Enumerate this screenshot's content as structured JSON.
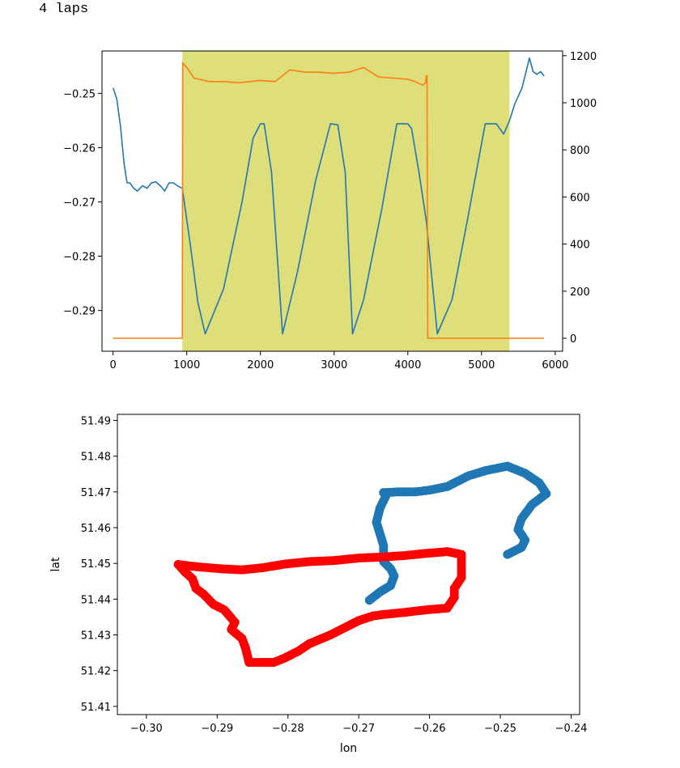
{
  "output_text": "4 laps",
  "chart_data": [
    {
      "type": "line",
      "title": "",
      "xlabel": "",
      "ylabel": "",
      "xlim": [
        -150,
        6100
      ],
      "ylim_left": [
        -0.2975,
        -0.2422
      ],
      "ylim_right": [
        -55,
        1220
      ],
      "xticks": [
        0,
        1000,
        2000,
        3000,
        4000,
        5000,
        6000
      ],
      "xtick_labels": [
        "0",
        "1000",
        "2000",
        "3000",
        "4000",
        "5000",
        "6000"
      ],
      "yticks_left": [
        -0.25,
        -0.26,
        -0.27,
        -0.28,
        -0.29
      ],
      "ytick_labels_left": [
        "−0.25",
        "−0.26",
        "−0.27",
        "−0.28",
        "−0.29"
      ],
      "yticks_right": [
        0,
        200,
        400,
        600,
        800,
        1000,
        1200
      ],
      "ytick_labels_right": [
        "0",
        "200",
        "400",
        "600",
        "800",
        "1000",
        "1200"
      ],
      "shaded_region": {
        "x": [
          940,
          5380
        ],
        "color": "#dede7a"
      },
      "series": [
        {
          "axis": "left",
          "color": "#1f77b4",
          "x": [
            0,
            50,
            100,
            150,
            190,
            230,
            280,
            330,
            400,
            460,
            520,
            580,
            640,
            700,
            760,
            820,
            870,
            940,
            1050,
            1150,
            1250,
            1500,
            1750,
            1900,
            2000,
            2050,
            2150,
            2300,
            2500,
            2750,
            2950,
            3050,
            3150,
            3250,
            3400,
            3650,
            3850,
            4000,
            4050,
            4150,
            4250,
            4400,
            4600,
            4800,
            5050,
            5200,
            5300,
            5380,
            5450,
            5550,
            5650,
            5700,
            5750,
            5800,
            5850
          ],
          "y": [
            -0.249,
            -0.251,
            -0.256,
            -0.263,
            -0.2665,
            -0.2665,
            -0.2675,
            -0.268,
            -0.267,
            -0.2675,
            -0.2665,
            -0.2663,
            -0.267,
            -0.268,
            -0.2665,
            -0.2665,
            -0.267,
            -0.2675,
            -0.278,
            -0.2885,
            -0.2943,
            -0.286,
            -0.27,
            -0.2583,
            -0.2556,
            -0.2556,
            -0.2645,
            -0.2943,
            -0.283,
            -0.266,
            -0.2556,
            -0.2558,
            -0.2645,
            -0.2943,
            -0.288,
            -0.271,
            -0.2556,
            -0.2556,
            -0.2565,
            -0.2645,
            -0.2735,
            -0.2943,
            -0.288,
            -0.274,
            -0.2556,
            -0.2556,
            -0.2575,
            -0.255,
            -0.252,
            -0.249,
            -0.2435,
            -0.246,
            -0.2465,
            -0.246,
            -0.2468
          ]
        },
        {
          "axis": "right",
          "color": "#ff7f0e",
          "x": [
            0,
            930,
            940,
            945,
            1000,
            1100,
            1300,
            1500,
            1700,
            2000,
            2200,
            2400,
            2600,
            2800,
            3000,
            3200,
            3400,
            3600,
            3800,
            4000,
            4100,
            4200,
            4240,
            4250,
            4260,
            4270,
            5000,
            5850
          ],
          "y": [
            0,
            0,
            0,
            1170,
            1150,
            1105,
            1090,
            1090,
            1085,
            1095,
            1090,
            1140,
            1130,
            1130,
            1125,
            1130,
            1150,
            1110,
            1105,
            1100,
            1090,
            1075,
            1085,
            1115,
            1115,
            0,
            0,
            0
          ]
        }
      ]
    },
    {
      "type": "scatter",
      "title": "",
      "xlabel": "lon",
      "ylabel": "lat",
      "xlim": [
        -0.3041,
        -0.2388
      ],
      "ylim": [
        51.4077,
        51.4917
      ],
      "xticks": [
        -0.3,
        -0.29,
        -0.28,
        -0.27,
        -0.26,
        -0.25,
        -0.24
      ],
      "xtick_labels": [
        "−0.30",
        "−0.29",
        "−0.28",
        "−0.27",
        "−0.26",
        "−0.25",
        "−0.24"
      ],
      "yticks": [
        51.41,
        51.42,
        51.43,
        51.44,
        51.45,
        51.46,
        51.47,
        51.48,
        51.49
      ],
      "ytick_labels": [
        "51.41",
        "51.42",
        "51.43",
        "51.44",
        "51.45",
        "51.46",
        "51.47",
        "51.48",
        "51.49"
      ],
      "series": [
        {
          "color": "#1f77b4",
          "lon": [
            -0.2685,
            -0.267,
            -0.2655,
            -0.265,
            -0.2655,
            -0.2665,
            -0.2665,
            -0.2675,
            -0.267,
            -0.266,
            -0.2665,
            -0.2665,
            -0.2645,
            -0.262,
            -0.26,
            -0.2575,
            -0.2555,
            -0.2545,
            -0.252,
            -0.249,
            -0.2465,
            -0.2445,
            -0.2435,
            -0.2455,
            -0.247,
            -0.2475,
            -0.2465,
            -0.247,
            -0.249
          ],
          "lat": [
            51.4397,
            51.442,
            51.4438,
            51.4465,
            51.4485,
            51.4505,
            51.455,
            51.4615,
            51.4655,
            51.4695,
            51.4698,
            51.4698,
            51.47,
            51.47,
            51.4705,
            51.4715,
            51.4735,
            51.4745,
            51.476,
            51.4772,
            51.4752,
            51.4725,
            51.4695,
            51.4665,
            51.4625,
            51.4595,
            51.4565,
            51.4545,
            51.4525
          ]
        },
        {
          "color": "#ff0000",
          "lon": [
            -0.2955,
            -0.2945,
            -0.2935,
            -0.293,
            -0.292,
            -0.2905,
            -0.289,
            -0.2875,
            -0.288,
            -0.2865,
            -0.286,
            -0.2855,
            -0.2835,
            -0.282,
            -0.2805,
            -0.2785,
            -0.277,
            -0.274,
            -0.272,
            -0.27,
            -0.268,
            -0.2665,
            -0.2635,
            -0.2605,
            -0.2575,
            -0.2565,
            -0.2565,
            -0.2555,
            -0.2555,
            -0.2555,
            -0.2575,
            -0.2605,
            -0.2635,
            -0.2665,
            -0.27,
            -0.2735,
            -0.277,
            -0.2805,
            -0.2835,
            -0.2865,
            -0.2895,
            -0.2925,
            -0.294,
            -0.2955
          ],
          "lat": [
            51.4497,
            51.4475,
            51.4457,
            51.443,
            51.4415,
            51.4385,
            51.437,
            51.4335,
            51.4315,
            51.429,
            51.4263,
            51.4223,
            51.4223,
            51.4223,
            51.4235,
            51.4255,
            51.4275,
            51.43,
            51.432,
            51.434,
            51.4353,
            51.4357,
            51.4363,
            51.437,
            51.4375,
            51.4405,
            51.443,
            51.446,
            51.4495,
            51.4525,
            51.4533,
            51.4528,
            51.4522,
            51.4518,
            51.4515,
            51.4508,
            51.4505,
            51.4498,
            51.4488,
            51.4482,
            51.4485,
            51.449,
            51.4493,
            51.4497
          ]
        }
      ]
    }
  ]
}
